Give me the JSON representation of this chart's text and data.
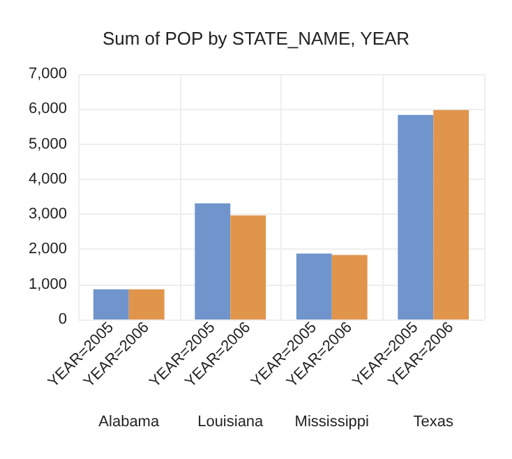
{
  "chart_data": {
    "type": "bar",
    "title": "Sum of POP by STATE_NAME, YEAR",
    "categories": [
      "Alabama",
      "Louisiana",
      "Mississippi",
      "Texas"
    ],
    "series": [
      {
        "name": "YEAR=2005",
        "color": "#7094cc",
        "values": [
          860,
          3310,
          1880,
          5830
        ]
      },
      {
        "name": "YEAR=2006",
        "color": "#e0954b",
        "values": [
          860,
          2970,
          1840,
          5970
        ]
      }
    ],
    "ylim": [
      0,
      7000
    ],
    "yticks": [
      0,
      {
        "value": 1000,
        "label": "1,000"
      },
      {
        "value": 2000,
        "label": "2,000"
      },
      {
        "value": 3000,
        "label": "3,000"
      },
      {
        "value": 4000,
        "label": "4,000"
      },
      {
        "value": 5000,
        "label": "5,000"
      },
      {
        "value": 6000,
        "label": "6,000"
      },
      {
        "value": 7000,
        "label": "7,000"
      }
    ],
    "grid": true,
    "legend": false
  }
}
